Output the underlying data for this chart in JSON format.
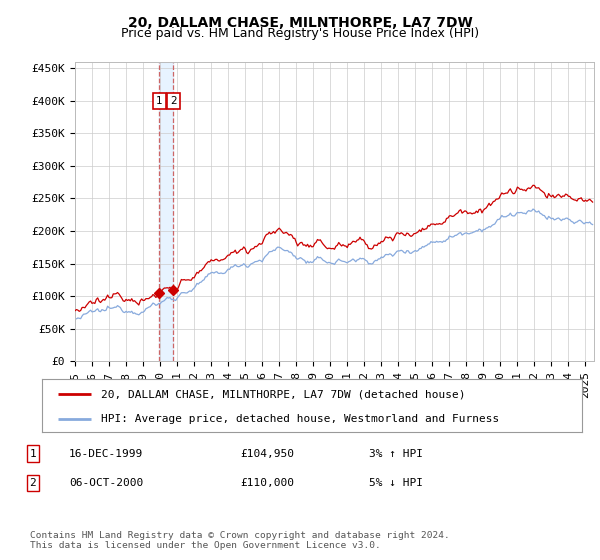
{
  "title": "20, DALLAM CHASE, MILNTHORPE, LA7 7DW",
  "subtitle": "Price paid vs. HM Land Registry's House Price Index (HPI)",
  "ylabel_ticks": [
    "£0",
    "£50K",
    "£100K",
    "£150K",
    "£200K",
    "£250K",
    "£300K",
    "£350K",
    "£400K",
    "£450K"
  ],
  "ytick_values": [
    0,
    50000,
    100000,
    150000,
    200000,
    250000,
    300000,
    350000,
    400000,
    450000
  ],
  "ylim": [
    0,
    460000
  ],
  "xlim_start": 1995.0,
  "xlim_end": 2025.5,
  "sale1_date": 1999.96,
  "sale1_price": 104950,
  "sale2_date": 2000.78,
  "sale2_price": 110000,
  "line_color_property": "#cc0000",
  "line_color_hpi": "#88aadd",
  "marker_color": "#cc0000",
  "vline_color": "#cc6666",
  "vfill_color": "#ddeeff",
  "box_color": "#cc0000",
  "grid_color": "#cccccc",
  "background_color": "#ffffff",
  "legend_entry1": "20, DALLAM CHASE, MILNTHORPE, LA7 7DW (detached house)",
  "legend_entry2": "HPI: Average price, detached house, Westmorland and Furness",
  "table_row1": [
    "1",
    "16-DEC-1999",
    "£104,950",
    "3% ↑ HPI"
  ],
  "table_row2": [
    "2",
    "06-OCT-2000",
    "£110,000",
    "5% ↓ HPI"
  ],
  "footnote": "Contains HM Land Registry data © Crown copyright and database right 2024.\nThis data is licensed under the Open Government Licence v3.0.",
  "title_fontsize": 10,
  "subtitle_fontsize": 9,
  "tick_fontsize": 8,
  "legend_fontsize": 8
}
